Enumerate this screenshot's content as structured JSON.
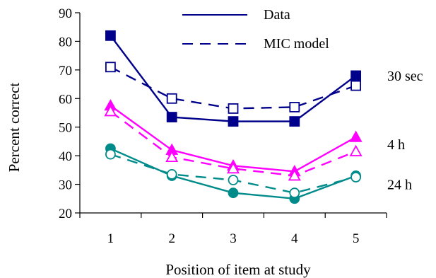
{
  "chart_data": {
    "type": "line",
    "xlabel": "Position of item at study",
    "ylabel": "Percent correct",
    "x": [
      1,
      2,
      3,
      4,
      5
    ],
    "xlim": [
      0.5,
      5.5
    ],
    "ylim": [
      20,
      90
    ],
    "yticks": [
      20,
      30,
      40,
      50,
      60,
      70,
      80,
      90
    ],
    "xticks": [
      1,
      2,
      3,
      4,
      5
    ],
    "grid": false,
    "legend": {
      "placement": "top-center",
      "entries": [
        {
          "label": "Data",
          "style": "solid"
        },
        {
          "label": "MIC model",
          "style": "dashed"
        }
      ]
    },
    "series": [
      {
        "name": "30 sec",
        "kind": "data",
        "style": "solid",
        "marker": "filled-square",
        "color": "#00008B",
        "values": [
          82,
          53.5,
          52,
          52,
          68
        ]
      },
      {
        "name": "30 sec",
        "kind": "model",
        "style": "dashed",
        "marker": "open-square",
        "color": "#00008B",
        "values": [
          71,
          60,
          56.5,
          57,
          64.5
        ]
      },
      {
        "name": "4 h",
        "kind": "data",
        "style": "solid",
        "marker": "filled-triangle",
        "color": "#FF00FF",
        "values": [
          57.5,
          42,
          36.5,
          34.5,
          46.5
        ]
      },
      {
        "name": "4 h",
        "kind": "model",
        "style": "dashed",
        "marker": "open-triangle",
        "color": "#FF00FF",
        "values": [
          55.5,
          39.5,
          35.5,
          33,
          41.5
        ]
      },
      {
        "name": "24 h",
        "kind": "data",
        "style": "solid",
        "marker": "filled-circle",
        "color": "#008B8B",
        "values": [
          42.5,
          33,
          27,
          25,
          33
        ]
      },
      {
        "name": "24 h",
        "kind": "model",
        "style": "dashed",
        "marker": "open-circle",
        "color": "#008B8B",
        "values": [
          40.5,
          33.5,
          31.5,
          27,
          32.5
        ]
      }
    ],
    "condition_labels": [
      {
        "text": "30 sec",
        "anchor_y": 68
      },
      {
        "text": "4 h",
        "anchor_y": 44
      },
      {
        "text": "24 h",
        "anchor_y": 30
      }
    ]
  }
}
